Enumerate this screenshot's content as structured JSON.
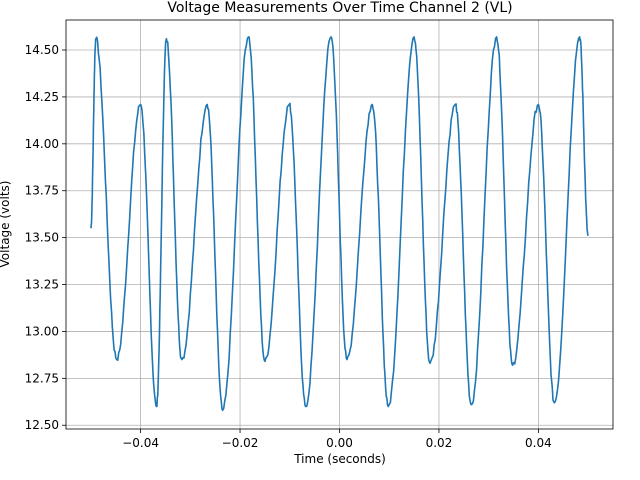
{
  "chart_data": {
    "type": "line",
    "title": "Voltage Measurements Over Time Channel 2 (VL)",
    "xlabel": "Time (seconds)",
    "ylabel": "Voltage (volts)",
    "xlim": [
      -0.055,
      0.055
    ],
    "ylim": [
      12.48,
      14.66
    ],
    "grid": true,
    "x_ticks": [
      -0.04,
      -0.02,
      0.0,
      0.02,
      0.04
    ],
    "x_tick_labels": [
      "−0.04",
      "−0.02",
      "0.00",
      "0.02",
      "0.04"
    ],
    "y_ticks": [
      12.5,
      12.75,
      13.0,
      13.25,
      13.5,
      13.75,
      14.0,
      14.25,
      14.5
    ],
    "y_tick_labels": [
      "12.50",
      "12.75",
      "13.00",
      "13.25",
      "13.50",
      "13.75",
      "14.00",
      "14.25",
      "14.50"
    ],
    "series": [
      {
        "color": "#1f77b4",
        "x": [
          -0.05,
          -0.049,
          -0.0448,
          -0.04,
          -0.0368,
          -0.0348,
          -0.0317,
          -0.0266,
          -0.0235,
          -0.0183,
          -0.015,
          -0.0101,
          -0.0068,
          -0.0017,
          0.0015,
          0.0066,
          0.0098,
          0.015,
          0.0182,
          0.0233,
          0.0265,
          0.0316,
          0.0348,
          0.04,
          0.0432,
          0.0483,
          0.05
        ],
        "y": [
          13.55,
          14.56,
          12.85,
          14.21,
          12.6,
          14.56,
          12.85,
          14.21,
          12.58,
          14.57,
          12.84,
          14.21,
          12.6,
          14.57,
          12.85,
          14.21,
          12.6,
          14.57,
          12.83,
          14.21,
          12.61,
          14.57,
          12.82,
          14.21,
          12.62,
          14.57,
          13.51
        ]
      }
    ]
  }
}
